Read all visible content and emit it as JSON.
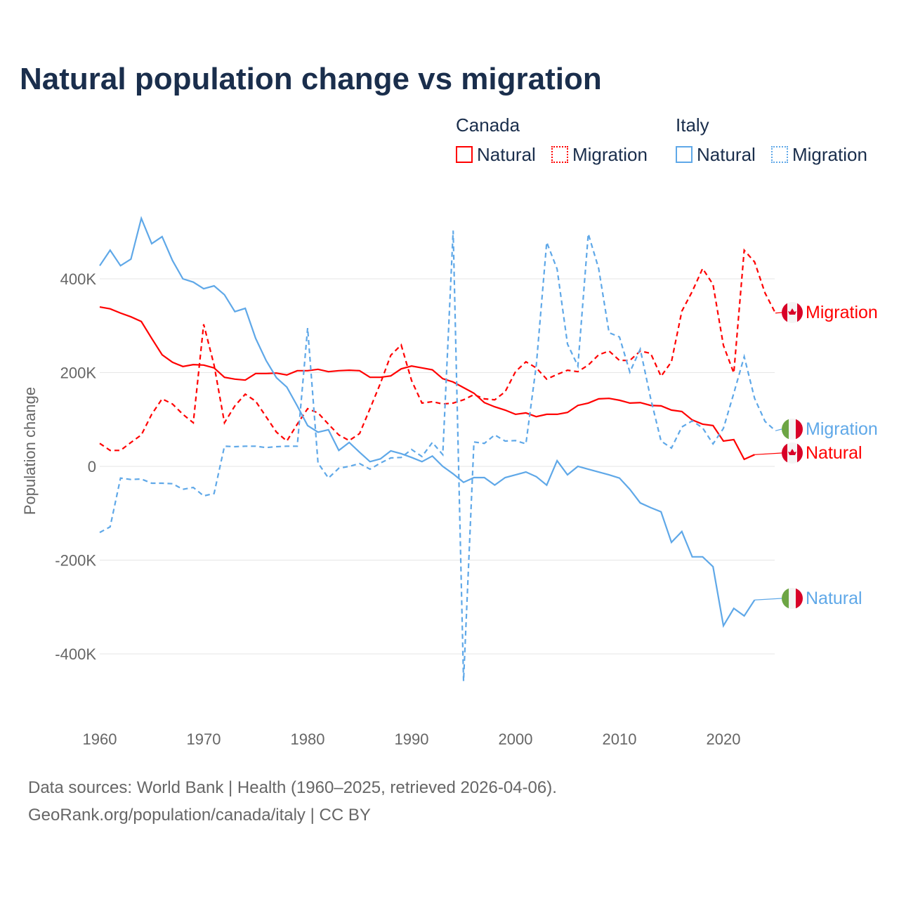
{
  "title": "Natural population change vs migration",
  "legend": {
    "groups": [
      {
        "name": "Canada",
        "items": [
          "Natural",
          "Migration"
        ]
      },
      {
        "name": "Italy",
        "items": [
          "Natural",
          "Migration"
        ]
      }
    ]
  },
  "footer": [
    "Data sources: World Bank | Health (1960–2025, retrieved 2026-04-06).",
    "GeoRank.org/population/canada/italy | CC BY"
  ],
  "colors": {
    "canada": "#ff0000",
    "italy": "#5fa8e8"
  },
  "chart_data": {
    "type": "line",
    "xlabel": "",
    "ylabel": "Population change",
    "xlim": [
      1960,
      2025
    ],
    "ylim": [
      -460000,
      530000
    ],
    "xticks": [
      1960,
      1970,
      1980,
      1990,
      2000,
      2010,
      2020
    ],
    "yticks": [
      {
        "v": 400000,
        "label": "400K"
      },
      {
        "v": 200000,
        "label": "200K"
      },
      {
        "v": 0,
        "label": "0"
      },
      {
        "v": -200000,
        "label": "-200K"
      },
      {
        "v": -400000,
        "label": "-400K"
      }
    ],
    "grid": true,
    "series": [
      {
        "name": "Canada Natural",
        "country": "canada",
        "dash": false,
        "end_label": "Natural",
        "start": 1960,
        "extend_to": 2025,
        "values": [
          340,
          336,
          327,
          319,
          309,
          273,
          238,
          222,
          213,
          217,
          216,
          210,
          190,
          186,
          184,
          198,
          198,
          199,
          195,
          204,
          204,
          207,
          202,
          204,
          205,
          204,
          190,
          190,
          193,
          208,
          214,
          210,
          206,
          187,
          180,
          168,
          156,
          136,
          127,
          120,
          111,
          114,
          106,
          111,
          111,
          115,
          130,
          135,
          144,
          145,
          141,
          135,
          136,
          130,
          129,
          120,
          117,
          99,
          90,
          87,
          54,
          57,
          15,
          25
        ]
      },
      {
        "name": "Canada Migration",
        "country": "canada",
        "dash": true,
        "end_label": "Migration",
        "start": 1960,
        "extend_to": 2025,
        "values": [
          49,
          34,
          34,
          51,
          67,
          111,
          144,
          133,
          111,
          93,
          303,
          216,
          93,
          129,
          154,
          139,
          106,
          73,
          54,
          90,
          123,
          114,
          90,
          67,
          55,
          70,
          123,
          177,
          237,
          259,
          183,
          135,
          138,
          133,
          135,
          142,
          153,
          144,
          142,
          159,
          202,
          223,
          210,
          186,
          196,
          205,
          202,
          216,
          238,
          246,
          226,
          226,
          246,
          241,
          192,
          223,
          331,
          373,
          422,
          388,
          258,
          199,
          461,
          436,
          370,
          327
        ]
      },
      {
        "name": "Italy Natural",
        "country": "italy",
        "dash": false,
        "end_label": "Natural",
        "start": 1960,
        "extend_to": 2025,
        "values": [
          428,
          461,
          428,
          442,
          529,
          475,
          490,
          439,
          400,
          393,
          379,
          385,
          366,
          330,
          337,
          273,
          226,
          189,
          169,
          129,
          87,
          73,
          78,
          34,
          51,
          30,
          10,
          16,
          33,
          27,
          19,
          10,
          22,
          0,
          -16,
          -34,
          -24,
          -24,
          -40,
          -24,
          -18,
          -12,
          -22,
          -40,
          12,
          -18,
          0,
          -6,
          -12,
          -18,
          -25,
          -49,
          -78,
          -88,
          -97,
          -162,
          -139,
          -193,
          -193,
          -214,
          -340,
          -303,
          -319,
          -285
        ]
      },
      {
        "name": "Italy Migration",
        "country": "italy",
        "dash": true,
        "end_label": "Migration",
        "start": 1960,
        "extend_to": 2025,
        "values": [
          -141,
          -129,
          -25,
          -28,
          -27,
          -36,
          -36,
          -37,
          -49,
          -45,
          -63,
          -58,
          43,
          42,
          43,
          43,
          40,
          42,
          43,
          43,
          295,
          7,
          -25,
          -4,
          0,
          6,
          -6,
          7,
          18,
          19,
          36,
          21,
          51,
          25,
          503,
          -458,
          52,
          49,
          67,
          54,
          55,
          48,
          216,
          478,
          421,
          261,
          214,
          496,
          422,
          285,
          276,
          201,
          250,
          145,
          54,
          39,
          84,
          97,
          82,
          48,
          81,
          156,
          234,
          145,
          96,
          76
        ]
      }
    ],
    "value_unit": "thousands"
  }
}
